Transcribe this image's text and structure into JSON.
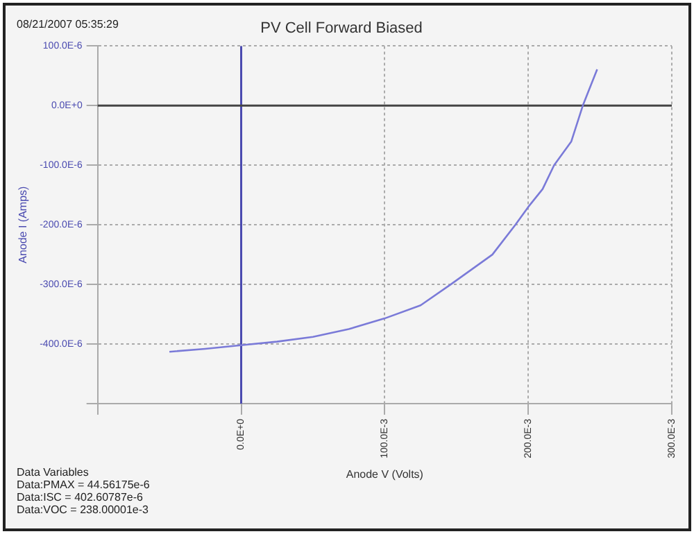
{
  "chart_data": {
    "type": "line",
    "title": "PV Cell Forward Biased",
    "xlabel": "Anode V (Volts)",
    "ylabel": "Anode I (Amps)",
    "annotations": [
      "08/21/2007 05:35:29",
      "Data Variables",
      "Data:PMAX = 44.56175e-6",
      "Data:ISC = 402.60787e-6",
      "Data:VOC = 238.00001e-3"
    ],
    "series": [
      {
        "color": "#7a7ad8",
        "x": [
          -0.05,
          -0.025,
          0,
          0.025,
          0.05,
          0.075,
          0.1,
          0.125,
          0.146,
          0.175,
          0.191,
          0.2,
          0.21,
          0.218,
          0.23,
          0.238,
          0.248
        ],
        "values": [
          -0.000413,
          -0.000408,
          -0.000402,
          -0.000396,
          -0.000388,
          -0.000375,
          -0.000357,
          -0.000335,
          -0.0003,
          -0.00025,
          -0.0002,
          -0.00017,
          -0.00014,
          -0.0001,
          -6e-05,
          0,
          6.1e-05
        ]
      }
    ],
    "xlim": [
      -0.1,
      0.3
    ],
    "xticks": [
      {
        "value": -0.1,
        "label": null
      },
      {
        "value": 0,
        "label": "0.0E+0"
      },
      {
        "value": 0.1,
        "label": "100.0E-3"
      },
      {
        "value": 0.2,
        "label": "200.0E-3"
      },
      {
        "value": 0.3,
        "label": "300.0E-3"
      }
    ],
    "ylim": [
      -0.0005,
      0.0001
    ],
    "yticks": [
      {
        "value": -0.0005,
        "label": null
      },
      {
        "value": -0.0004,
        "label": "-400.0E-6"
      },
      {
        "value": -0.0003,
        "label": "-300.0E-6"
      },
      {
        "value": -0.0002,
        "label": "-200.0E-6"
      },
      {
        "value": -0.0001,
        "label": "-100.0E-6"
      },
      {
        "value": 0,
        "label": "0.0E+0"
      },
      {
        "value": 0.0001,
        "label": "100.0E-6"
      }
    ],
    "ref_lines": [
      {
        "axis": "x",
        "value": 0,
        "color": "#4a4ab0"
      },
      {
        "axis": "y",
        "value": 0,
        "color": "#444444"
      }
    ],
    "grid": true,
    "legend": false,
    "marker": "none",
    "line_style": "solid"
  }
}
